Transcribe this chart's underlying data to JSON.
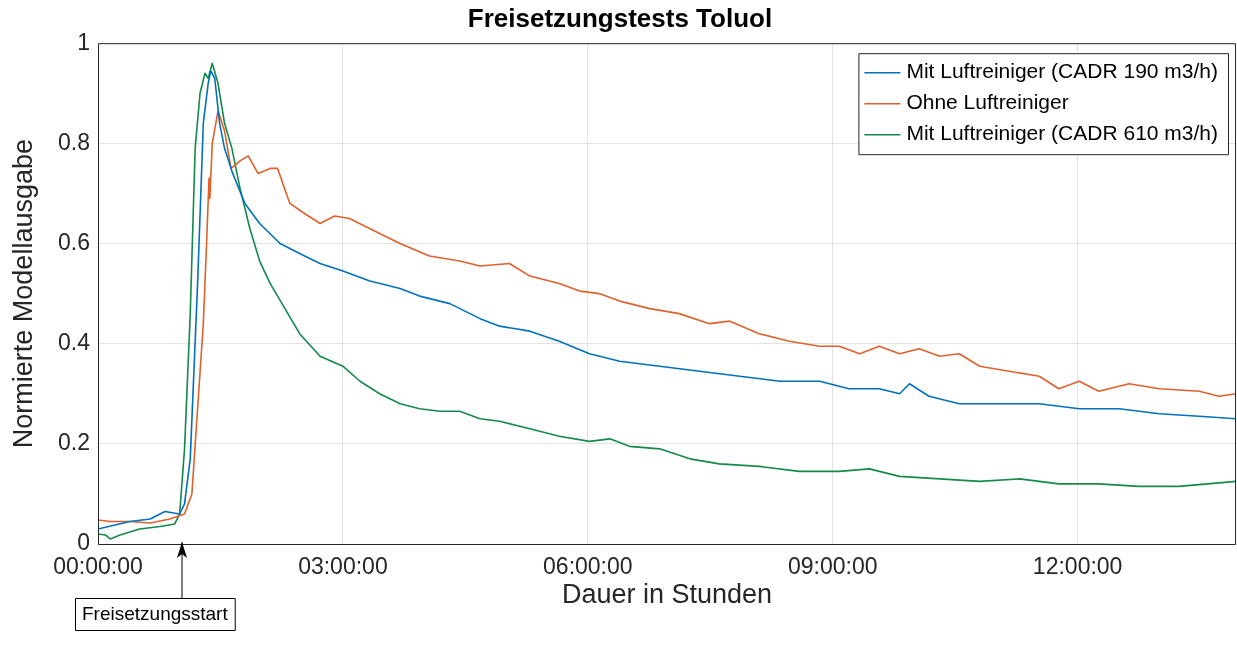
{
  "chart_data": {
    "type": "line",
    "title": "Freisetzungstests Toluol",
    "xlabel": "Dauer in Stunden",
    "ylabel": "Normierte Modellausgabe",
    "xlim": [
      0,
      13.94
    ],
    "xticks": [
      {
        "value": 0,
        "label": "00:00:00"
      },
      {
        "value": 3,
        "label": "03:00:00"
      },
      {
        "value": 6,
        "label": "06:00:00"
      },
      {
        "value": 9,
        "label": "09:00:00"
      },
      {
        "value": 12,
        "label": "12:00:00"
      }
    ],
    "ylim": [
      0,
      1
    ],
    "yticks": [
      0,
      0.2,
      0.4,
      0.6,
      0.8,
      1
    ],
    "grid": true,
    "legend": "top right",
    "marker": "none",
    "line_style": "solid",
    "annotations": [
      "Freisetzungsstart"
    ],
    "series": [
      {
        "name": "Mit Luftreiniger (CADR 190 m3/h)",
        "color": "#0072bd",
        "x": [
          0,
          0.39,
          0.64,
          0.82,
          1.0,
          1.06,
          1.13,
          1.22,
          1.29,
          1.35,
          1.38,
          1.43,
          1.49,
          1.55,
          1.65,
          1.8,
          1.98,
          2.23,
          2.47,
          2.72,
          3.0,
          3.33,
          3.7,
          3.94,
          4.31,
          4.68,
          4.92,
          5.29,
          5.65,
          6.02,
          6.39,
          6.88,
          7.37,
          7.86,
          8.35,
          8.84,
          9.2,
          9.57,
          9.82,
          9.94,
          10.18,
          10.55,
          11.04,
          11.53,
          12.02,
          12.51,
          13.0,
          13.49,
          13.94
        ],
        "values": [
          0.03,
          0.045,
          0.05,
          0.065,
          0.06,
          0.08,
          0.17,
          0.52,
          0.84,
          0.92,
          0.945,
          0.93,
          0.84,
          0.79,
          0.74,
          0.68,
          0.64,
          0.6,
          0.58,
          0.56,
          0.545,
          0.525,
          0.51,
          0.495,
          0.48,
          0.45,
          0.435,
          0.425,
          0.405,
          0.38,
          0.365,
          0.355,
          0.345,
          0.335,
          0.325,
          0.325,
          0.31,
          0.31,
          0.3,
          0.32,
          0.295,
          0.28,
          0.28,
          0.28,
          0.27,
          0.27,
          0.26,
          0.255,
          0.25
        ]
      },
      {
        "name": "Ohne Luftreiniger",
        "color": "#e0612c",
        "x": [
          0,
          0.15,
          0.39,
          0.64,
          0.88,
          1.06,
          1.15,
          1.22,
          1.29,
          1.33,
          1.36,
          1.37,
          1.4,
          1.47,
          1.55,
          1.63,
          1.74,
          1.84,
          1.96,
          2.11,
          2.2,
          2.35,
          2.53,
          2.72,
          2.9,
          3.08,
          3.45,
          3.7,
          4.06,
          4.43,
          4.68,
          5.04,
          5.29,
          5.65,
          5.9,
          6.14,
          6.39,
          6.76,
          7.12,
          7.49,
          7.74,
          8.1,
          8.47,
          8.84,
          9.08,
          9.33,
          9.57,
          9.82,
          10.06,
          10.31,
          10.55,
          10.8,
          11.16,
          11.53,
          11.77,
          12.02,
          12.26,
          12.63,
          13.0,
          13.49,
          13.73,
          13.94
        ],
        "values": [
          0.048,
          0.045,
          0.045,
          0.042,
          0.05,
          0.06,
          0.1,
          0.27,
          0.44,
          0.6,
          0.73,
          0.69,
          0.8,
          0.865,
          0.825,
          0.75,
          0.765,
          0.775,
          0.74,
          0.75,
          0.75,
          0.68,
          0.66,
          0.64,
          0.655,
          0.65,
          0.62,
          0.6,
          0.575,
          0.565,
          0.555,
          0.56,
          0.535,
          0.52,
          0.505,
          0.5,
          0.485,
          0.47,
          0.46,
          0.44,
          0.445,
          0.42,
          0.405,
          0.395,
          0.395,
          0.38,
          0.395,
          0.38,
          0.39,
          0.375,
          0.38,
          0.355,
          0.345,
          0.335,
          0.31,
          0.325,
          0.305,
          0.32,
          0.31,
          0.305,
          0.295,
          0.3
        ]
      },
      {
        "name": "Mit Luftreiniger (CADR 610 m3/h)",
        "color": "#138a4a",
        "x": [
          0,
          0.09,
          0.15,
          0.27,
          0.51,
          0.76,
          0.94,
          1.0,
          1.06,
          1.13,
          1.19,
          1.25,
          1.31,
          1.35,
          1.4,
          1.47,
          1.55,
          1.64,
          1.74,
          1.86,
          1.98,
          2.11,
          2.29,
          2.47,
          2.72,
          3.0,
          3.21,
          3.45,
          3.7,
          3.94,
          4.19,
          4.43,
          4.68,
          4.92,
          5.29,
          5.65,
          6.02,
          6.27,
          6.51,
          6.88,
          7.25,
          7.61,
          8.1,
          8.59,
          9.08,
          9.45,
          9.82,
          10.31,
          10.8,
          11.29,
          11.77,
          12.26,
          12.75,
          13.24,
          13.94
        ],
        "values": [
          0.02,
          0.018,
          0.01,
          0.018,
          0.03,
          0.035,
          0.04,
          0.06,
          0.19,
          0.46,
          0.79,
          0.9,
          0.94,
          0.93,
          0.96,
          0.92,
          0.84,
          0.79,
          0.71,
          0.63,
          0.565,
          0.52,
          0.47,
          0.42,
          0.375,
          0.355,
          0.325,
          0.3,
          0.28,
          0.27,
          0.265,
          0.265,
          0.25,
          0.245,
          0.23,
          0.215,
          0.205,
          0.21,
          0.195,
          0.19,
          0.17,
          0.16,
          0.155,
          0.145,
          0.145,
          0.15,
          0.135,
          0.13,
          0.125,
          0.13,
          0.12,
          0.12,
          0.115,
          0.115,
          0.125
        ]
      }
    ]
  }
}
